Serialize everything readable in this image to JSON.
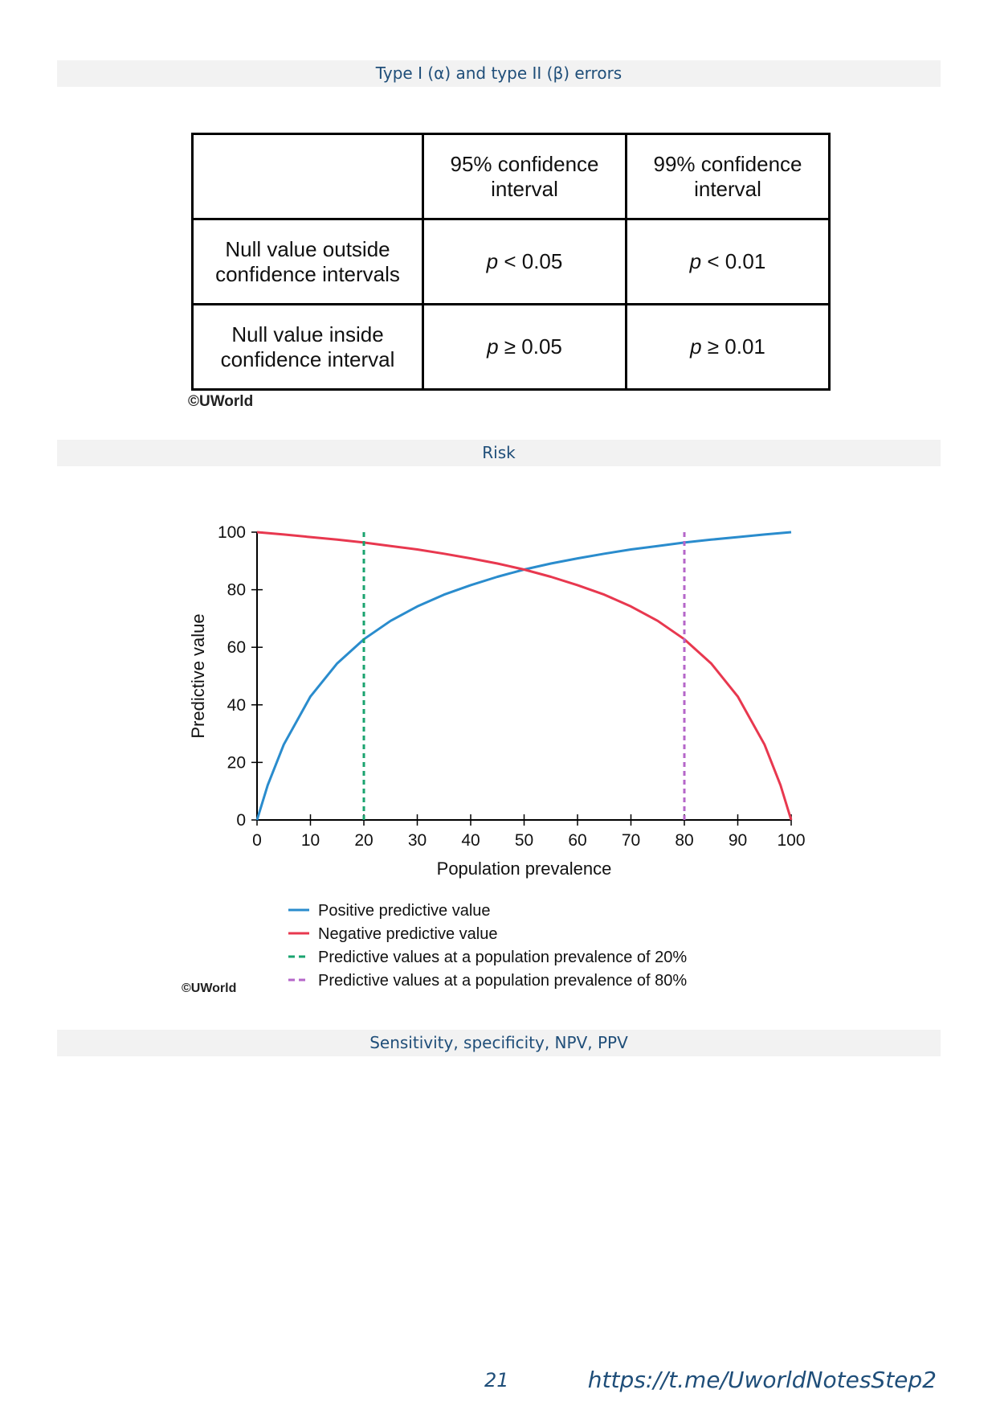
{
  "sections": {
    "s1": "Type I (α) and type II (β) errors",
    "s2": "Risk",
    "s3": "Sensitivity, specificity, NPV, PPV"
  },
  "table": {
    "col1": "95% confidence interval",
    "col2": "99% confidence interval",
    "row1": {
      "label": "Null value outside confidence intervals",
      "p_symbol": "p",
      "c1": " < 0.05",
      "c2": " < 0.01"
    },
    "row2": {
      "label": "Null value inside confidence interval",
      "p_symbol": "p",
      "c1": " ≥ 0.05",
      "c2": " ≥ 0.01"
    }
  },
  "copyright": "©UWorld",
  "chart_data": {
    "type": "line",
    "xlabel": "Population prevalence",
    "ylabel": "Predictive value",
    "xlim": [
      0,
      100
    ],
    "ylim": [
      0,
      100
    ],
    "xticks": [
      0,
      10,
      20,
      30,
      40,
      50,
      60,
      70,
      80,
      90,
      100
    ],
    "yticks": [
      0,
      20,
      40,
      60,
      80,
      100
    ],
    "series": [
      {
        "name": "Positive predictive value",
        "color": "#2a8ccd",
        "style": "solid",
        "x": [
          0,
          2,
          5,
          10,
          15,
          20,
          25,
          30,
          35,
          40,
          45,
          50,
          55,
          60,
          65,
          70,
          75,
          80,
          85,
          90,
          95,
          100
        ],
        "y": [
          0,
          12.1,
          26.2,
          42.9,
          54.4,
          62.8,
          69.2,
          74.2,
          78.3,
          81.6,
          84.5,
          87.0,
          89.1,
          90.9,
          92.5,
          94.0,
          95.2,
          96.4,
          97.4,
          98.3,
          99.2,
          100
        ]
      },
      {
        "name": "Negative predictive value",
        "color": "#e8384f",
        "style": "solid",
        "x": [
          0,
          5,
          10,
          15,
          20,
          25,
          30,
          35,
          40,
          45,
          50,
          55,
          60,
          65,
          70,
          75,
          80,
          85,
          90,
          95,
          98,
          100
        ],
        "y": [
          100,
          99.2,
          98.3,
          97.4,
          96.4,
          95.2,
          94.0,
          92.5,
          90.9,
          89.1,
          87.0,
          84.5,
          81.6,
          78.3,
          74.2,
          69.2,
          62.8,
          54.4,
          42.9,
          26.2,
          12.1,
          0
        ]
      },
      {
        "name": "Predictive values at a population prevalence of 20%",
        "color": "#1aa36f",
        "style": "dashed",
        "x": [
          20,
          20
        ],
        "y": [
          0,
          100
        ]
      },
      {
        "name": "Predictive values at a population prevalence of 80%",
        "color": "#b566c9",
        "style": "dashed",
        "x": [
          80,
          80
        ],
        "y": [
          0,
          100
        ]
      }
    ]
  },
  "footer": {
    "page_number": "21",
    "link": "https://t.me/UworldNotesStep2"
  }
}
